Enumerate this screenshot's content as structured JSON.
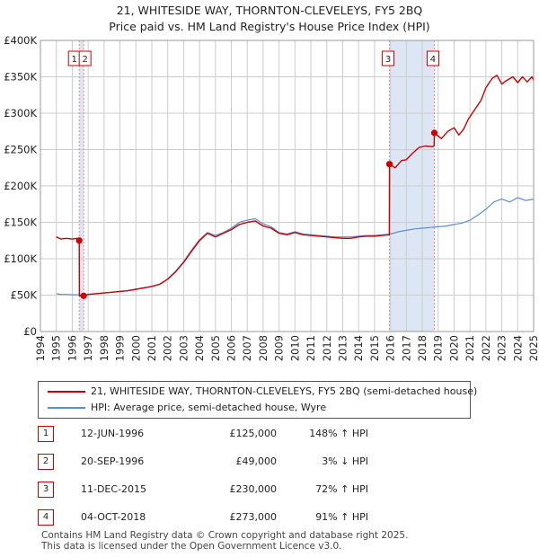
{
  "title_line1": "21, WHITESIDE WAY, THORNTON-CLEVELEYS, FY5 2BQ",
  "title_line2": "Price paid vs. HM Land Registry's House Price Index (HPI)",
  "legend": {
    "property_label": "21, WHITESIDE WAY, THORNTON-CLEVELEYS, FY5 2BQ (semi-detached house)",
    "hpi_label": "HPI: Average price, semi-detached house, Wyre"
  },
  "sales": [
    {
      "num": "1",
      "date": "12-JUN-1996",
      "price": "£125,000",
      "hpi": "148% ↑ HPI"
    },
    {
      "num": "2",
      "date": "20-SEP-1996",
      "price": "£49,000",
      "hpi": "3% ↓ HPI"
    },
    {
      "num": "3",
      "date": "11-DEC-2015",
      "price": "£230,000",
      "hpi": "72% ↑ HPI"
    },
    {
      "num": "4",
      "date": "04-OCT-2018",
      "price": "£273,000",
      "hpi": "91% ↑ HPI"
    }
  ],
  "footer_line1": "Contains HM Land Registry data © Crown copyright and database right 2025.",
  "footer_line2": "This data is licensed under the Open Government Licence v3.0.",
  "colors": {
    "property": "#cc0000",
    "hpi": "#5b8fd0",
    "grid": "#cccccc",
    "shade": "#dde6f5",
    "marker_line": "#ee8888"
  },
  "chart_data": {
    "type": "line",
    "title": "21, WHITESIDE WAY, THORNTON-CLEVELEYS, FY5 2BQ / Price paid vs. HM Land Registry's House Price Index (HPI)",
    "xlabel": "",
    "ylabel": "",
    "xlim": [
      1994,
      2025
    ],
    "ylim": [
      0,
      400000
    ],
    "y_ticks": [
      0,
      50000,
      100000,
      150000,
      200000,
      250000,
      300000,
      350000,
      400000
    ],
    "y_tick_labels": [
      "£0",
      "£50K",
      "£100K",
      "£150K",
      "£200K",
      "£250K",
      "£300K",
      "£350K",
      "£400K"
    ],
    "x_ticks": [
      1994,
      1995,
      1996,
      1997,
      1998,
      1999,
      2000,
      2001,
      2002,
      2003,
      2004,
      2005,
      2006,
      2007,
      2008,
      2009,
      2010,
      2011,
      2012,
      2013,
      2014,
      2015,
      2016,
      2017,
      2018,
      2019,
      2020,
      2021,
      2022,
      2023,
      2024,
      2025
    ],
    "x_tick_labels": [
      "1994",
      "1995",
      "1996",
      "1997",
      "1998",
      "1999",
      "2000",
      "2001",
      "2002",
      "2003",
      "2004",
      "2005",
      "2006",
      "2007",
      "2008",
      "2009",
      "2010",
      "2011",
      "2012",
      "2013",
      "2014",
      "2015",
      "2016",
      "2017",
      "2018",
      "2019",
      "2020",
      "2021",
      "2022",
      "2023",
      "2024",
      "2025"
    ],
    "shaded_ranges": [
      [
        1996.44,
        1996.72
      ],
      [
        2015.94,
        2018.76
      ]
    ],
    "series": [
      {
        "name": "21, WHITESIDE WAY, THORNTON-CLEVELEYS, FY5 2BQ (semi-detached house)",
        "x": [
          1995.0,
          1995.3,
          1995.6,
          1996.0,
          1996.3,
          1996.44,
          1996.45,
          1996.72,
          1997.0,
          1997.5,
          1998.0,
          1998.5,
          1999.0,
          1999.5,
          2000.0,
          2000.5,
          2001.0,
          2001.5,
          2002.0,
          2002.5,
          2003.0,
          2003.5,
          2004.0,
          2004.5,
          2005.0,
          2005.5,
          2006.0,
          2006.5,
          2007.0,
          2007.5,
          2008.0,
          2008.5,
          2009.0,
          2009.5,
          2010.0,
          2010.5,
          2011.0,
          2011.5,
          2012.0,
          2012.5,
          2013.0,
          2013.5,
          2014.0,
          2014.5,
          2015.0,
          2015.5,
          2015.93,
          2015.94,
          2016.3,
          2016.7,
          2017.0,
          2017.4,
          2017.8,
          2018.2,
          2018.6,
          2018.75,
          2018.76,
          2019.2,
          2019.6,
          2020.0,
          2020.3,
          2020.6,
          2020.9,
          2021.3,
          2021.7,
          2022.0,
          2022.4,
          2022.7,
          2023.0,
          2023.3,
          2023.7,
          2024.0,
          2024.3,
          2024.6,
          2024.9,
          2025.0
        ],
        "values": [
          130000,
          127000,
          128000,
          127000,
          128000,
          125000,
          49000,
          49000,
          51000,
          52000,
          53000,
          54000,
          55000,
          56000,
          58000,
          60000,
          62000,
          65000,
          72000,
          82000,
          95000,
          110000,
          125000,
          135000,
          130000,
          135000,
          140000,
          147000,
          150000,
          152000,
          145000,
          142000,
          135000,
          133000,
          136000,
          133000,
          132000,
          131000,
          130000,
          129000,
          128000,
          128000,
          130000,
          131000,
          131000,
          132000,
          133000,
          230000,
          225000,
          235000,
          236000,
          245000,
          253000,
          255000,
          254000,
          255000,
          273000,
          265000,
          275000,
          280000,
          270000,
          278000,
          292000,
          305000,
          318000,
          335000,
          348000,
          352000,
          340000,
          345000,
          350000,
          342000,
          350000,
          343000,
          350000,
          345000
        ]
      },
      {
        "name": "HPI: Average price, semi-detached house, Wyre",
        "x": [
          1995.0,
          1995.3,
          1995.6,
          1996.0,
          1996.44,
          1996.72,
          1997.0,
          1997.5,
          1998.0,
          1998.5,
          1999.0,
          1999.5,
          2000.0,
          2000.5,
          2001.0,
          2001.5,
          2002.0,
          2002.5,
          2003.0,
          2003.5,
          2004.0,
          2004.5,
          2005.0,
          2005.5,
          2006.0,
          2006.5,
          2007.0,
          2007.5,
          2008.0,
          2008.5,
          2009.0,
          2009.5,
          2010.0,
          2010.5,
          2011.0,
          2011.5,
          2012.0,
          2012.5,
          2013.0,
          2013.5,
          2014.0,
          2014.5,
          2015.0,
          2015.5,
          2016.0,
          2016.5,
          2017.0,
          2017.5,
          2018.0,
          2018.5,
          2019.0,
          2019.5,
          2020.0,
          2020.5,
          2021.0,
          2021.5,
          2022.0,
          2022.5,
          2023.0,
          2023.5,
          2024.0,
          2024.5,
          2025.0
        ],
        "values": [
          52000,
          51000,
          51000,
          50500,
          50500,
          50500,
          51000,
          52000,
          53000,
          54000,
          55000,
          56000,
          58000,
          60000,
          62000,
          65000,
          72000,
          83000,
          96000,
          112000,
          126000,
          136000,
          132000,
          136000,
          142000,
          150000,
          153000,
          155000,
          148000,
          144000,
          136000,
          134000,
          137000,
          134000,
          133000,
          132000,
          131000,
          130000,
          130000,
          130000,
          131000,
          132000,
          132000,
          133000,
          134000,
          137000,
          139000,
          141000,
          142000,
          143000,
          144000,
          145000,
          147000,
          149000,
          153000,
          160000,
          168000,
          178000,
          182000,
          178000,
          184000,
          180000,
          182000
        ]
      }
    ],
    "sale_markers": [
      {
        "label": "1",
        "x": 1996.44,
        "value": 125000
      },
      {
        "label": "2",
        "x": 1996.72,
        "value": 49000
      },
      {
        "label": "3",
        "x": 2015.94,
        "value": 230000
      },
      {
        "label": "4",
        "x": 2018.76,
        "value": 273000
      }
    ]
  }
}
